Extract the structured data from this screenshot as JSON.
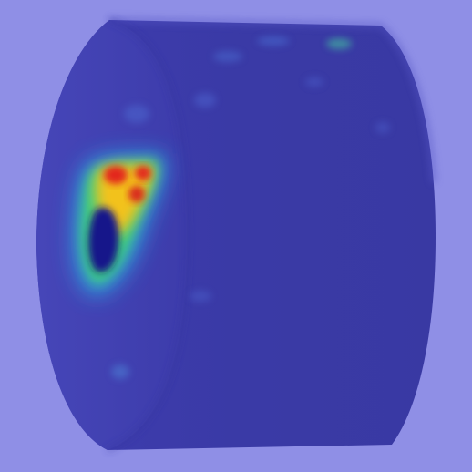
{
  "image": {
    "subject": "cylindrical-object-heatmap",
    "colors": {
      "background": "#8f8fe6",
      "object_body": "#3d3ca8",
      "object_face": "#4442b6",
      "object_edge": "#5353c4",
      "hot": "#e3281a",
      "warm": "#f2c21b",
      "mid": "#3fd07a",
      "cool": "#2aa6e6",
      "cold_core": "#17198a"
    }
  }
}
